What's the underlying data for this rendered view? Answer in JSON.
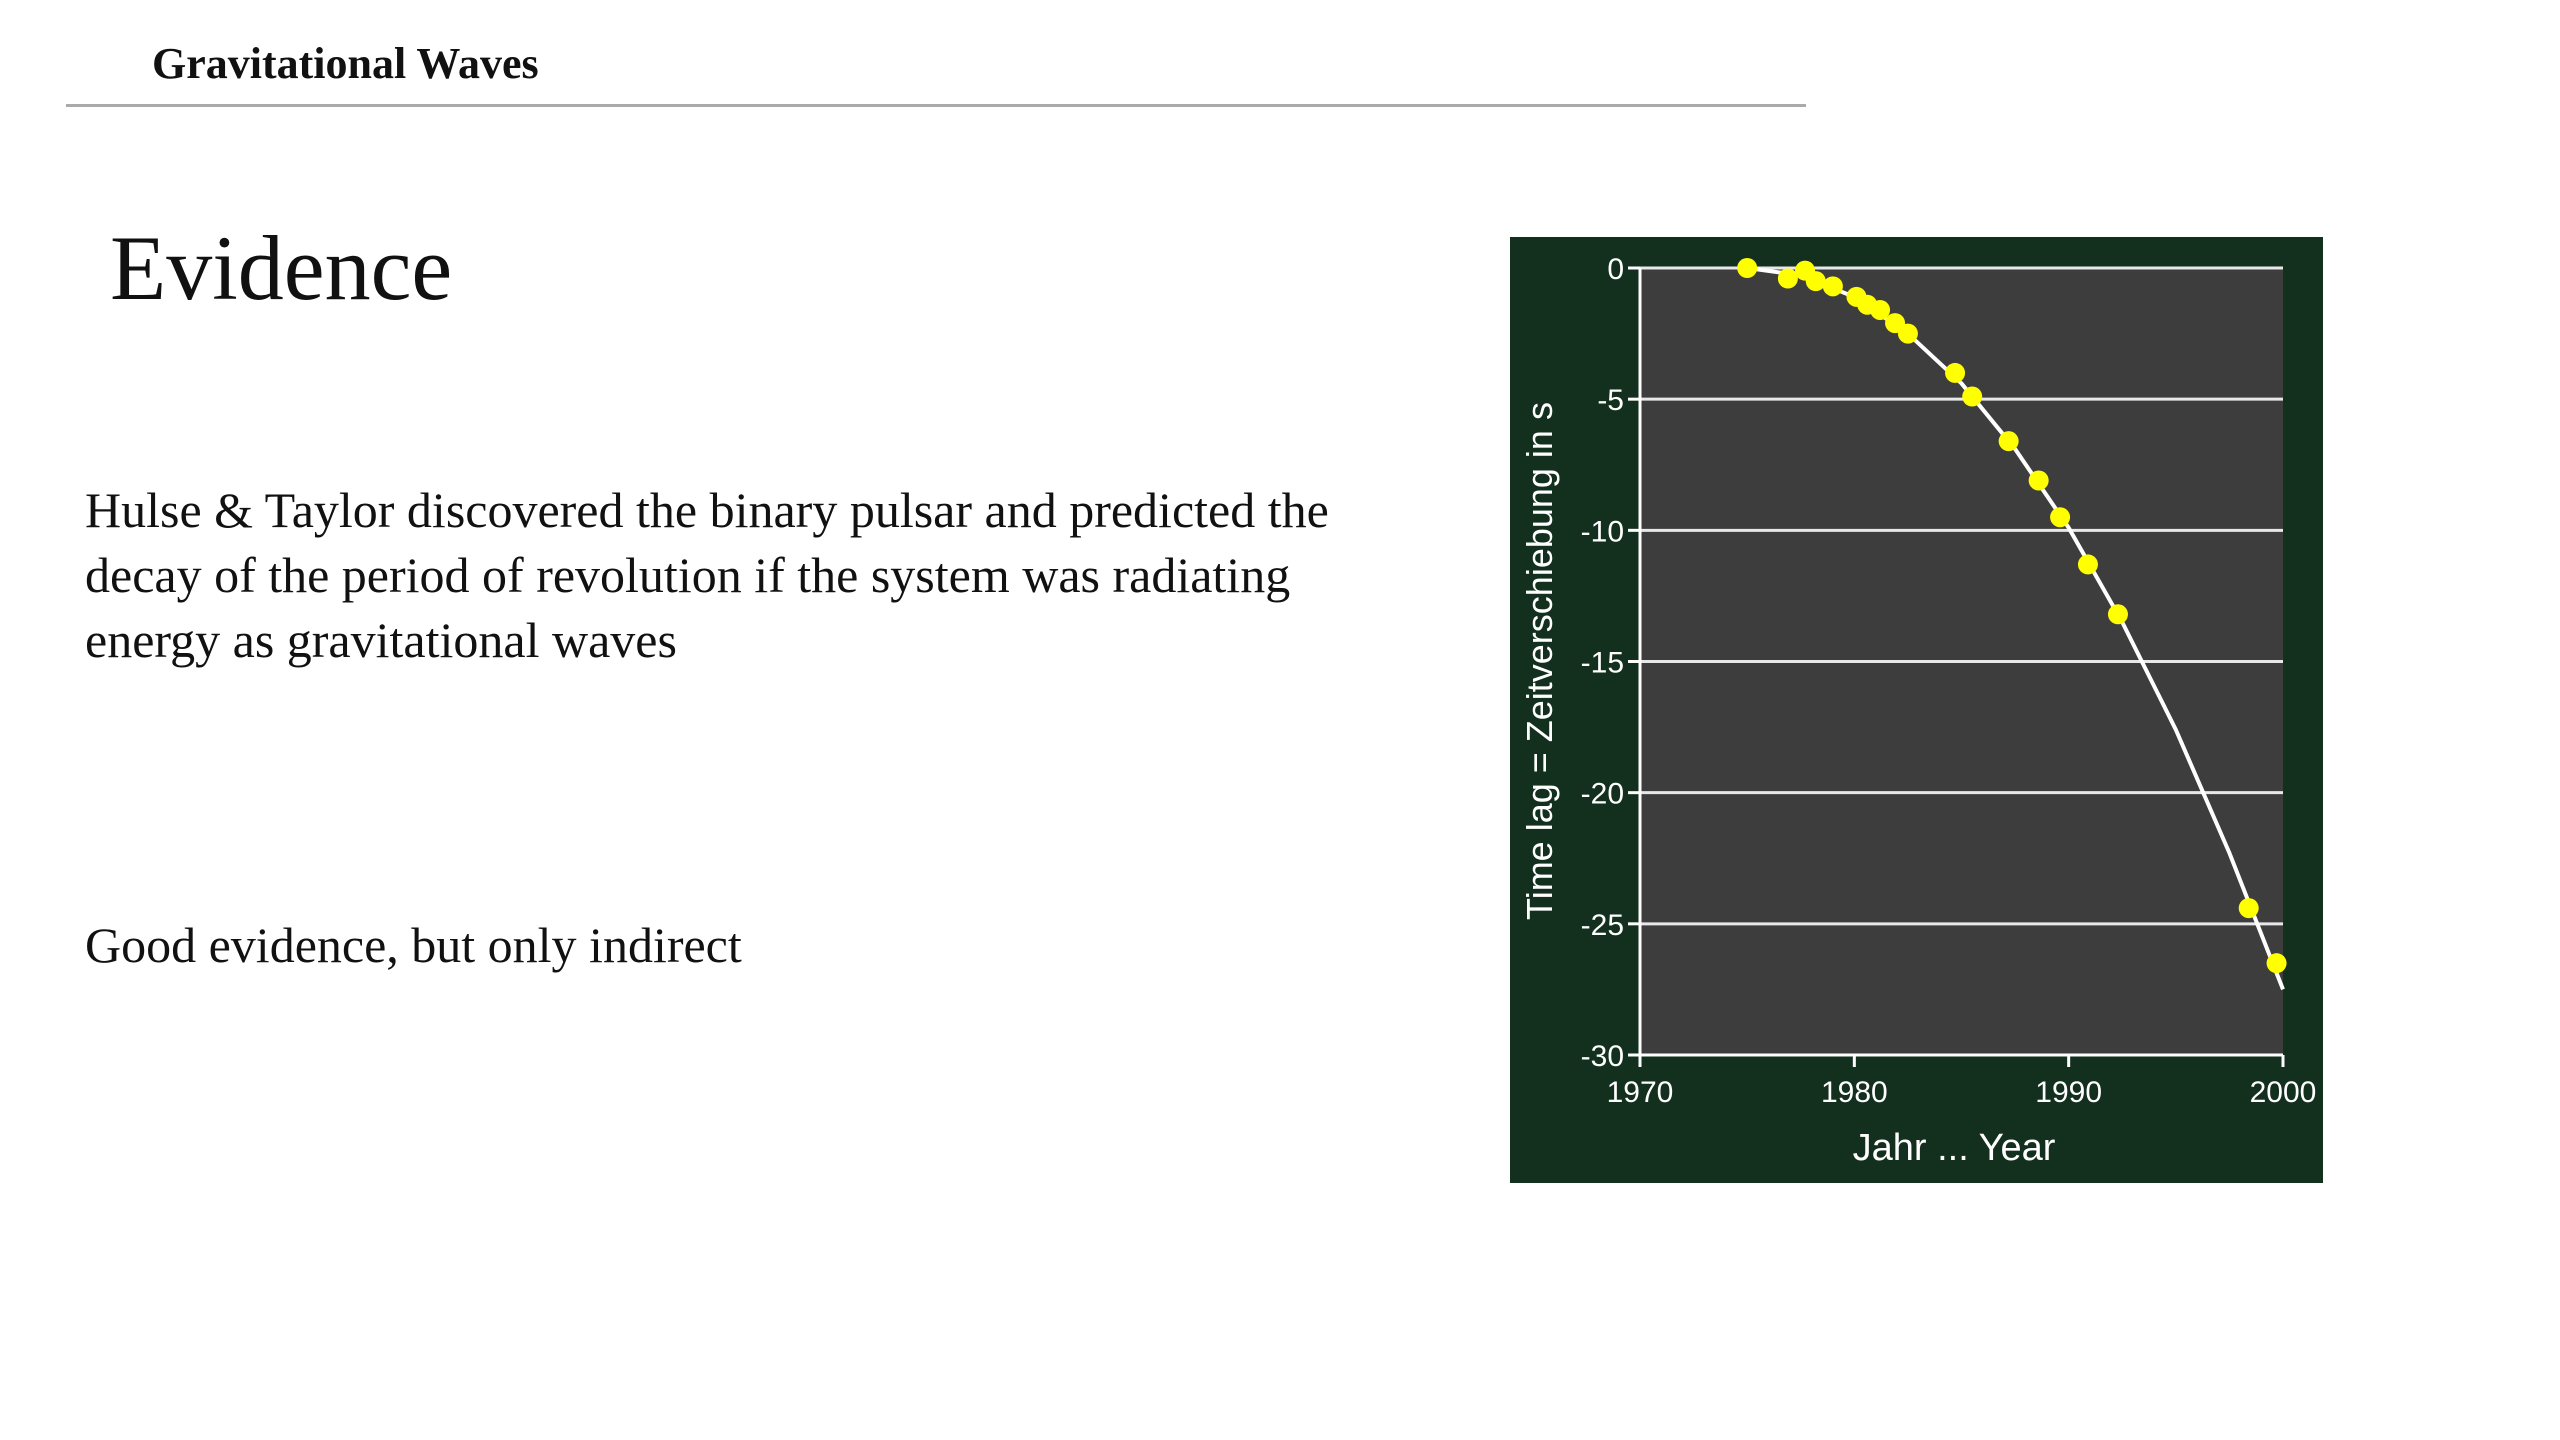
{
  "header": {
    "title": "Gravitational Waves"
  },
  "slide": {
    "title": "Evidence",
    "paragraphs": [
      "Hulse & Taylor discovered the binary pulsar and predicted the decay of the period of revolution if the system was radiating energy as gravitational waves",
      "Good evidence, but only indirect"
    ]
  },
  "chart_data": {
    "type": "scatter",
    "xlabel": "Jahr  ... Year",
    "ylabel": "Time lag  =  Zeitverschiebung in s",
    "xlim": [
      1970,
      2000
    ],
    "ylim": [
      -30,
      0
    ],
    "xticks": [
      1970,
      1980,
      1990,
      2000
    ],
    "yticks": [
      0,
      -5,
      -10,
      -15,
      -20,
      -25,
      -30
    ],
    "grid": true,
    "series": [
      {
        "color": "#ffff00",
        "x": [
          1975.0,
          1976.9,
          1977.7,
          1978.2,
          1979.0,
          1980.1,
          1980.6,
          1981.2,
          1981.9,
          1982.5,
          1984.7,
          1985.5,
          1987.2,
          1988.6,
          1989.6,
          1990.9,
          1992.3,
          1998.4,
          1999.7
        ],
        "values": [
          0.0,
          -0.4,
          -0.1,
          -0.5,
          -0.7,
          -1.1,
          -1.4,
          -1.6,
          -2.1,
          -2.5,
          -4.0,
          -4.9,
          -6.6,
          -8.1,
          -9.5,
          -11.3,
          -13.2,
          -24.4,
          -26.5
        ]
      },
      {
        "type": "line",
        "color": "#ffffff",
        "x": [
          1975,
          1977.5,
          1980,
          1982.5,
          1985,
          1987.5,
          1990,
          1992.5,
          1995,
          1997.5,
          2000
        ],
        "values": [
          0,
          -0.28,
          -1.1,
          -2.5,
          -4.4,
          -6.9,
          -9.9,
          -13.5,
          -17.6,
          -22.3,
          -27.5
        ]
      }
    ]
  }
}
